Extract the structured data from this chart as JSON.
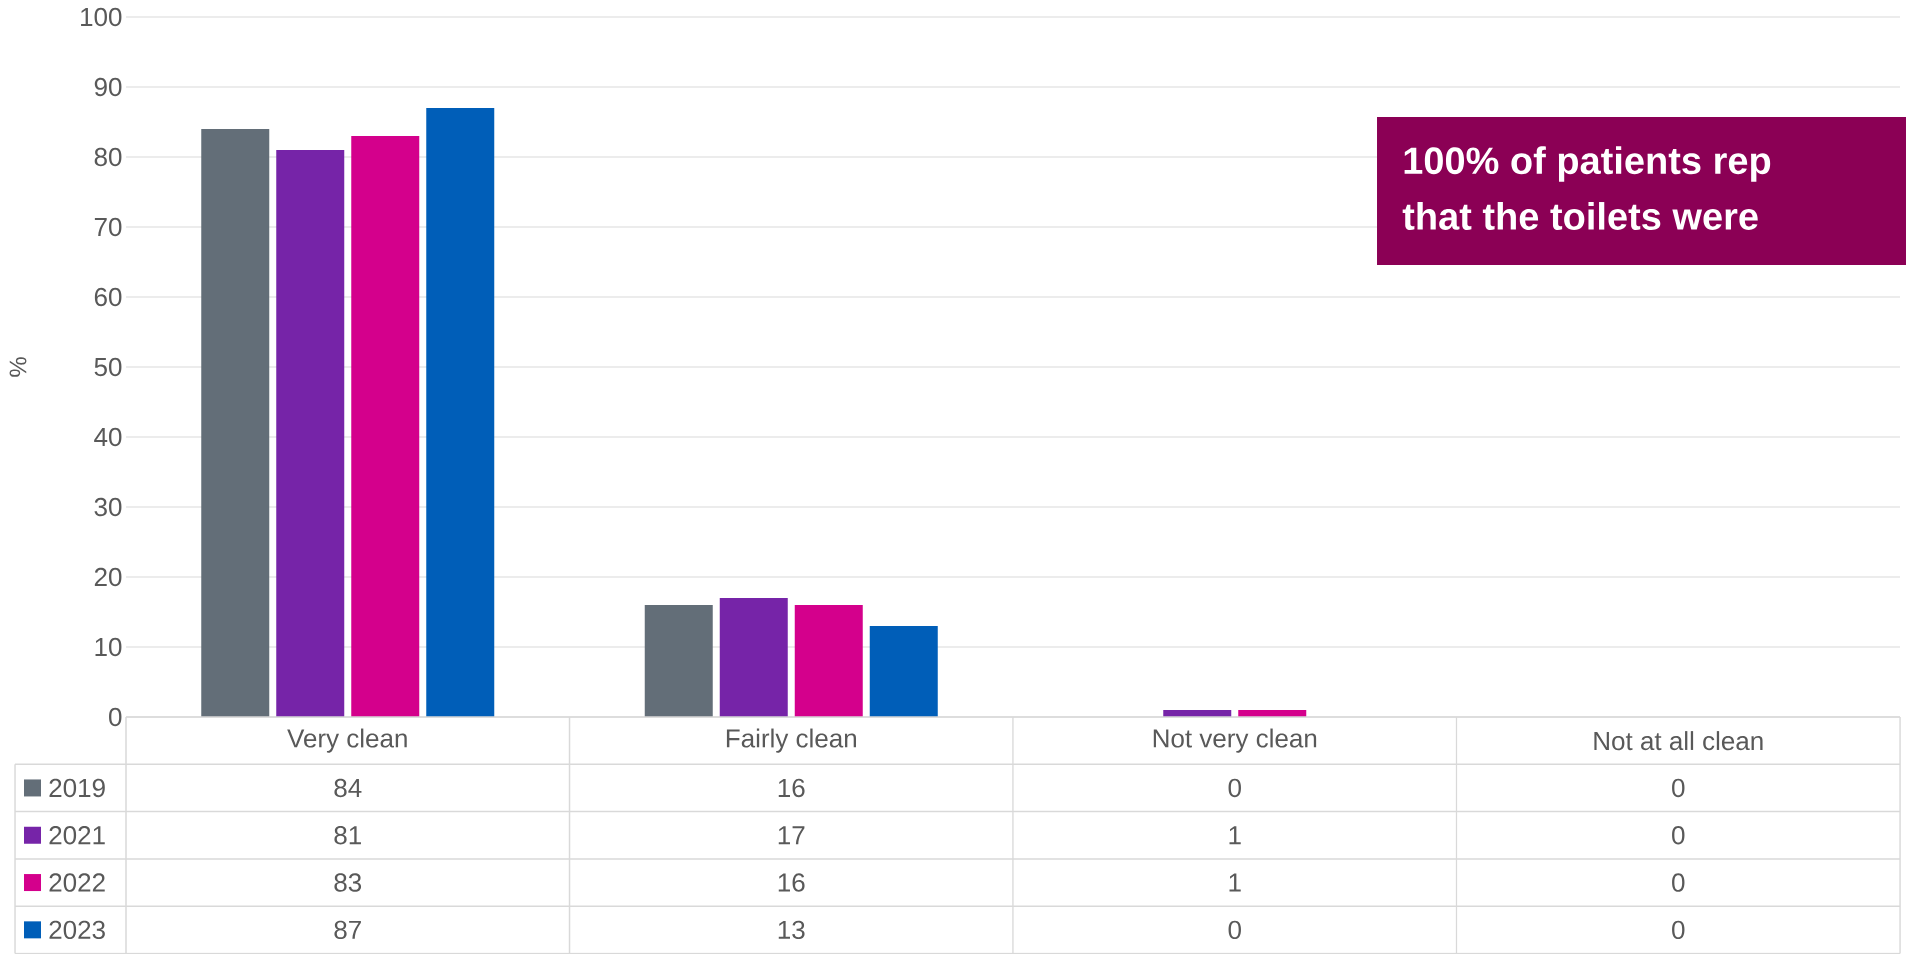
{
  "chart_data": {
    "type": "bar",
    "ylabel": "%",
    "categories": [
      "Very clean",
      "Fairly clean",
      "Not very clean",
      "Not at all clean"
    ],
    "series": [
      {
        "name": "2019",
        "color": "#636e78",
        "values": [
          84,
          16,
          0,
          0
        ]
      },
      {
        "name": "2021",
        "color": "#7624a8",
        "values": [
          81,
          17,
          1,
          0
        ]
      },
      {
        "name": "2022",
        "color": "#d4008c",
        "values": [
          83,
          16,
          1,
          0
        ]
      },
      {
        "name": "2023",
        "color": "#005eb8",
        "values": [
          87,
          13,
          0,
          0
        ]
      }
    ],
    "ylim": [
      0,
      100
    ],
    "yticks": [
      0,
      10,
      20,
      30,
      40,
      50,
      60,
      70,
      80,
      90,
      100
    ],
    "grid": "y",
    "legend": "bottom",
    "data_labels": true,
    "annotations": [
      "100% of patients rep",
      "that the toilets were"
    ]
  }
}
